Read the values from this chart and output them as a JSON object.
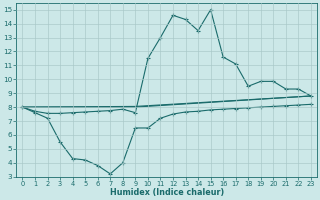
{
  "xlabel": "Humidex (Indice chaleur)",
  "bg_color": "#cce8e8",
  "line_color": "#1a6b6b",
  "grid_color": "#a8c8c8",
  "xlim": [
    -0.5,
    23.5
  ],
  "ylim": [
    3,
    15.5
  ],
  "yticks": [
    3,
    4,
    5,
    6,
    7,
    8,
    9,
    10,
    11,
    12,
    13,
    14,
    15
  ],
  "xticks": [
    0,
    1,
    2,
    3,
    4,
    5,
    6,
    7,
    8,
    9,
    10,
    11,
    12,
    13,
    14,
    15,
    16,
    17,
    18,
    19,
    20,
    21,
    22,
    23
  ],
  "line1_x": [
    0,
    1,
    2,
    3,
    4,
    5,
    6,
    7,
    8,
    9,
    10,
    11,
    12,
    13,
    14,
    15,
    16,
    17,
    18,
    19,
    20,
    21,
    22,
    23
  ],
  "line1_y": [
    8.0,
    7.7,
    7.55,
    7.55,
    7.6,
    7.65,
    7.7,
    7.75,
    7.85,
    7.6,
    11.5,
    13.0,
    14.6,
    14.3,
    13.5,
    15.0,
    11.6,
    11.1,
    9.5,
    9.85,
    9.85,
    9.3,
    9.3,
    8.8
  ],
  "line2_x": [
    0,
    9,
    23
  ],
  "line2_y": [
    8.0,
    8.05,
    8.8
  ],
  "line3_x": [
    0,
    9,
    23
  ],
  "line3_y": [
    8.0,
    8.0,
    8.8
  ],
  "line4_x": [
    0,
    1,
    2,
    3,
    4,
    5,
    6,
    7,
    8,
    9,
    10,
    11,
    12,
    13,
    14,
    15,
    16,
    17,
    18,
    19,
    20,
    21,
    22,
    23
  ],
  "line4_y": [
    8.0,
    7.6,
    7.2,
    5.5,
    4.3,
    4.2,
    3.8,
    3.2,
    4.0,
    6.5,
    6.5,
    7.2,
    7.5,
    7.65,
    7.7,
    7.8,
    7.85,
    7.9,
    7.95,
    8.0,
    8.05,
    8.1,
    8.15,
    8.2
  ]
}
